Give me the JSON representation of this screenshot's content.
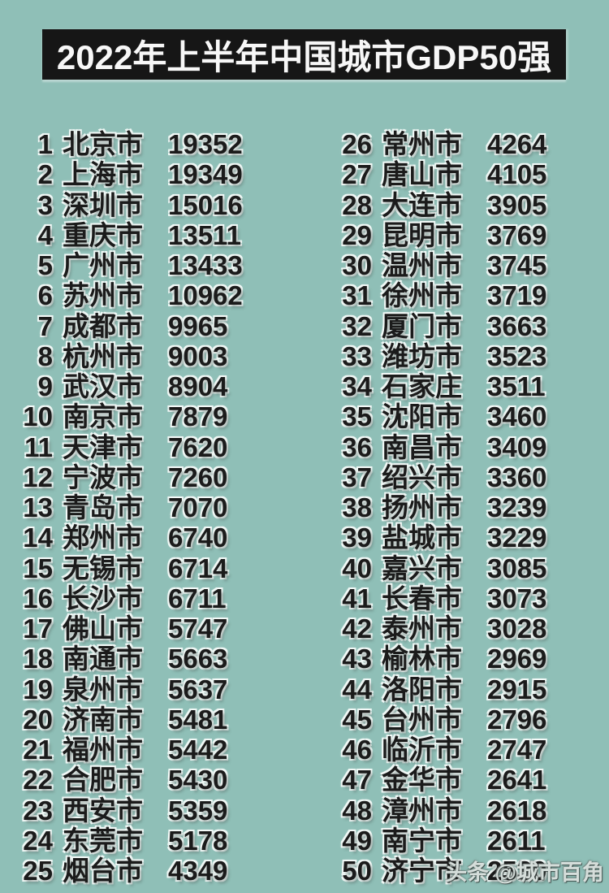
{
  "page": {
    "background_color": "#8fbfb7",
    "banner_color": "#161616",
    "title_color": "#f7f7f7",
    "text_color": "#1b1b1b"
  },
  "header": {
    "title": "2022年上半年中国城市GDP50强"
  },
  "watermark": {
    "text": "头条 @城市百角"
  },
  "chart_data": {
    "type": "table",
    "title": "2022年上半年中国城市GDP50强",
    "columns": [
      "rank",
      "city",
      "gdp"
    ],
    "layout": "two-column list, ranks 1-25 left, 26-50 right",
    "rows": [
      [
        1,
        "北京市",
        "19352"
      ],
      [
        2,
        "上海市",
        "19349"
      ],
      [
        3,
        "深圳市",
        "15016"
      ],
      [
        4,
        "重庆市",
        "13511"
      ],
      [
        5,
        "广州市",
        "13433"
      ],
      [
        6,
        "苏州市",
        "10962"
      ],
      [
        7,
        "成都市",
        "9965"
      ],
      [
        8,
        "杭州市",
        "9003"
      ],
      [
        9,
        "武汉市",
        "8904"
      ],
      [
        10,
        "南京市",
        "7879"
      ],
      [
        11,
        "天津市",
        "7620"
      ],
      [
        12,
        "宁波市",
        "7260"
      ],
      [
        13,
        "青岛市",
        "7070"
      ],
      [
        14,
        "郑州市",
        "6740"
      ],
      [
        15,
        "无锡市",
        "6714"
      ],
      [
        16,
        "长沙市",
        "6711"
      ],
      [
        17,
        "佛山市",
        "5747"
      ],
      [
        18,
        "南通市",
        "5663"
      ],
      [
        19,
        "泉州市",
        "5637"
      ],
      [
        20,
        "济南市",
        "5481"
      ],
      [
        21,
        "福州市",
        "5442"
      ],
      [
        22,
        "合肥市",
        "5430"
      ],
      [
        23,
        "西安市",
        "5359"
      ],
      [
        24,
        "东莞市",
        "5178"
      ],
      [
        25,
        "烟台市",
        "4349"
      ],
      [
        26,
        "常州市",
        "4264"
      ],
      [
        27,
        "唐山市",
        "4105"
      ],
      [
        28,
        "大连市",
        "3905"
      ],
      [
        29,
        "昆明市",
        "3769"
      ],
      [
        30,
        "温州市",
        "3745"
      ],
      [
        31,
        "徐州市",
        "3719"
      ],
      [
        32,
        "厦门市",
        "3663"
      ],
      [
        33,
        "潍坊市",
        "3523"
      ],
      [
        34,
        "石家庄",
        "3511"
      ],
      [
        35,
        "沈阳市",
        "3460"
      ],
      [
        36,
        "南昌市",
        "3409"
      ],
      [
        37,
        "绍兴市",
        "3360"
      ],
      [
        38,
        "扬州市",
        "3239"
      ],
      [
        39,
        "盐城市",
        "3229"
      ],
      [
        40,
        "嘉兴市",
        "3085"
      ],
      [
        41,
        "长春市",
        "3073"
      ],
      [
        42,
        "泰州市",
        "3028"
      ],
      [
        43,
        "榆林市",
        "2969"
      ],
      [
        44,
        "洛阳市",
        "2915"
      ],
      [
        45,
        "台州市",
        "2796"
      ],
      [
        46,
        "临沂市",
        "2747"
      ],
      [
        47,
        "金华市",
        "2641"
      ],
      [
        48,
        "漳州市",
        "2618"
      ],
      [
        49,
        "南宁市",
        "2611"
      ],
      [
        50,
        "济宁市",
        "2530"
      ]
    ]
  }
}
